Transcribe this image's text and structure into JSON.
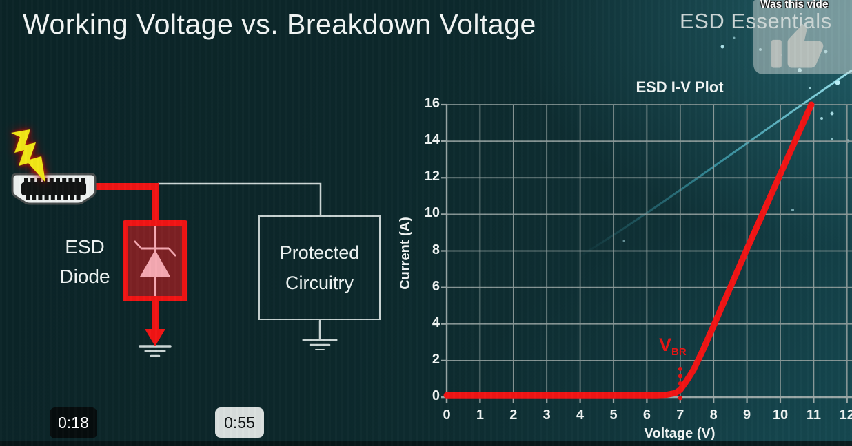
{
  "slide": {
    "title": "Working Voltage vs. Breakdown Voltage",
    "watermark": "ESD Essentials"
  },
  "feedback_overlay": {
    "prompt": "Was this vide",
    "icon": "thumbs-up"
  },
  "circuit": {
    "esd_diode_label": [
      "ESD",
      "Diode"
    ],
    "protected_label": [
      "Protected",
      "Circuitry"
    ],
    "connector_icon": "hdmi-port",
    "strike_icon": "lightning-bolt",
    "surge_wire_color": "#f21414",
    "signal_wire_color": "#cfd9d8",
    "diode_symbol_color": "#f5a9b2"
  },
  "chart_data": {
    "type": "line",
    "title": "ESD I-V Plot",
    "xlabel": "Voltage (V)",
    "ylabel": "Current (A)",
    "xlim": [
      0,
      12.15
    ],
    "ylim": [
      0,
      16
    ],
    "xticks": [
      0,
      1,
      2,
      3,
      4,
      5,
      6,
      7,
      8,
      9,
      10,
      11,
      12
    ],
    "yticks": [
      0,
      2,
      4,
      6,
      8,
      10,
      12,
      14,
      16
    ],
    "grid": true,
    "legend": "none",
    "series": [
      {
        "name": "ESD diode I-V curve",
        "color": "#f21414",
        "points": [
          [
            0,
            0.1
          ],
          [
            6.3,
            0.1
          ],
          [
            6.6,
            0.13
          ],
          [
            6.85,
            0.22
          ],
          [
            7.0,
            0.4
          ],
          [
            7.15,
            0.78
          ],
          [
            7.4,
            1.5
          ],
          [
            7.7,
            2.65
          ],
          [
            8,
            3.9
          ],
          [
            9,
            8.1
          ],
          [
            10,
            12.2
          ],
          [
            10.93,
            16
          ]
        ]
      }
    ],
    "annotations": [
      {
        "type": "vline-dotted",
        "x": 7,
        "y_from": 0,
        "y_to": 1.55,
        "label": "V",
        "sublabel": "BR",
        "color": "#e81414"
      }
    ]
  },
  "timestamps": [
    {
      "label": "0:18",
      "variant": "dark"
    },
    {
      "label": "0:55",
      "variant": "light"
    }
  ]
}
